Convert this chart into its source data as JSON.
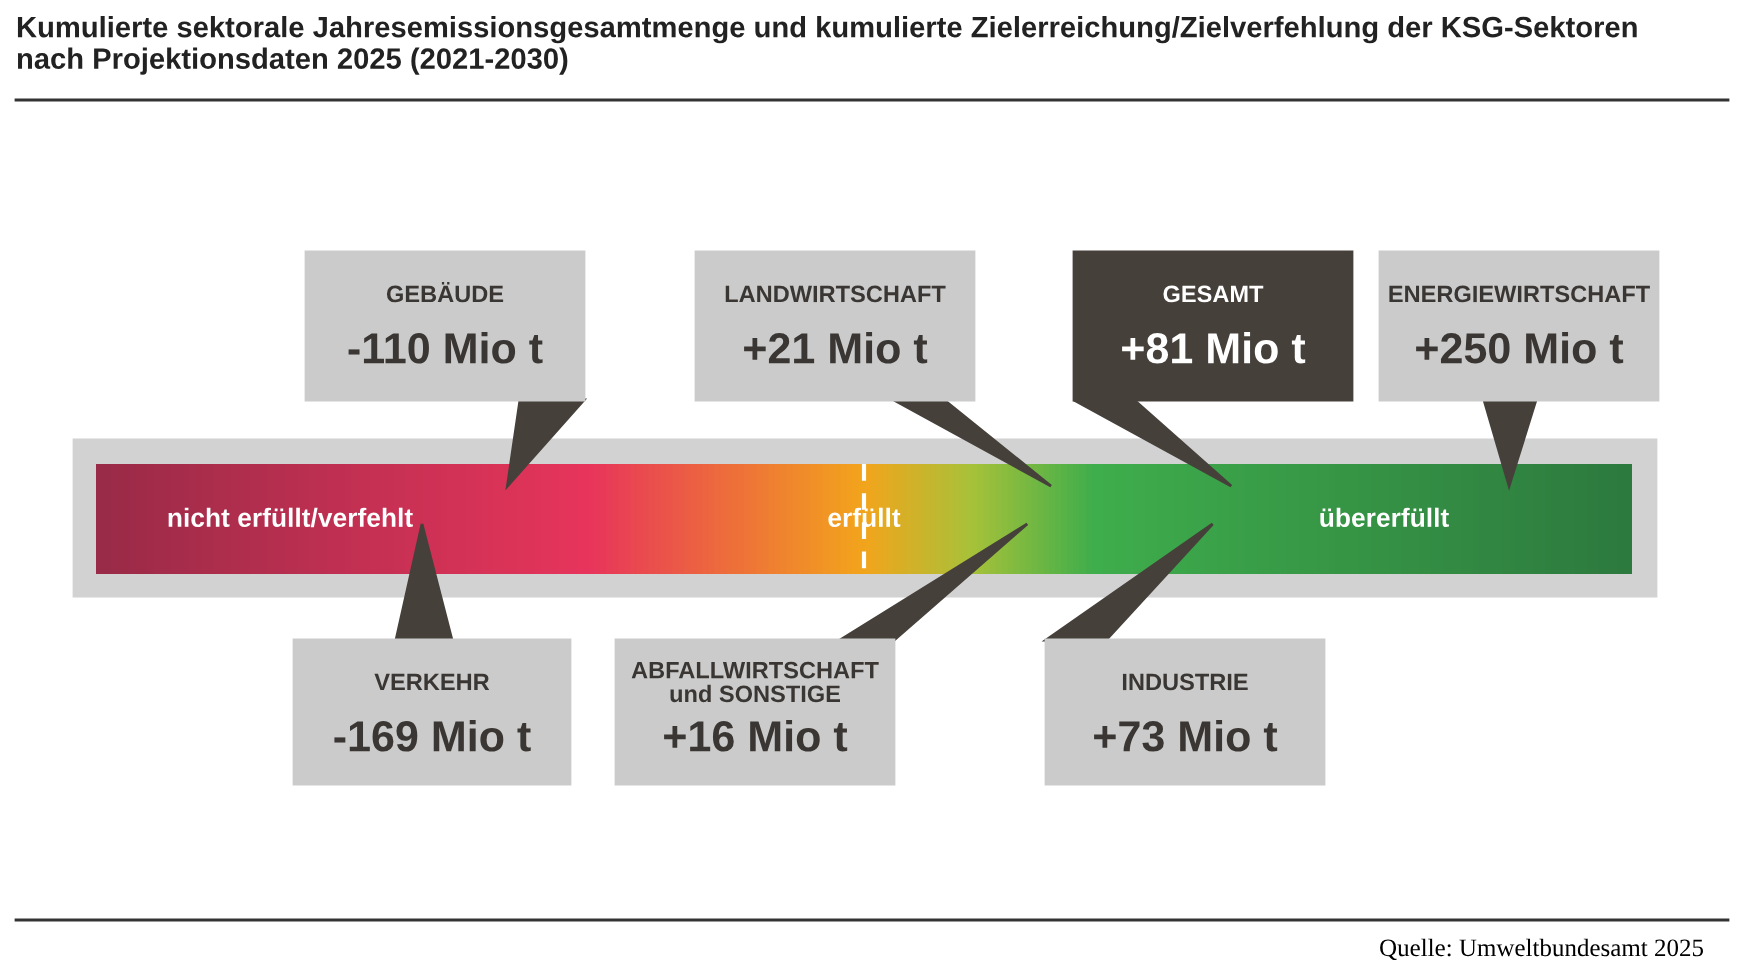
{
  "chart_data": {
    "type": "other",
    "title": "Kumulierte sektorale Jahresemissionsgesamtmenge und kumulierte Zielerreichung/Zielverfehlung der KSG-Sektoren\nnach Projektionsdaten 2025 (2021-2030)",
    "categories": [
      "GEBÄUDE",
      "VERKEHR",
      "ABFALLWIRTSCHAFT\nund SONSTIGE",
      "LANDWIRTSCHAFT",
      "INDUSTRIE",
      "GESAMT",
      "ENERGIEWIRTSCHAFT"
    ],
    "values": [
      -110,
      -169,
      16,
      21,
      73,
      81,
      250
    ],
    "value_labels": [
      "-110 Mio t",
      "-169 Mio t",
      "+16 Mio t",
      "+21 Mio t",
      "+73 Mio t",
      "+81 Mio t",
      "+250 Mio t"
    ],
    "colors": [
      "#cbcbcb",
      "#cbcbcb",
      "#cbcbcb",
      "#cbcbcb",
      "#cbcbcb",
      "#46403b",
      "#cbcbcb"
    ],
    "annotations": [
      "nicht erfüllt/verfehlt",
      "erfüllt",
      "übererfüllt",
      "Quelle: Umweltbundesamt 2025"
    ]
  }
}
